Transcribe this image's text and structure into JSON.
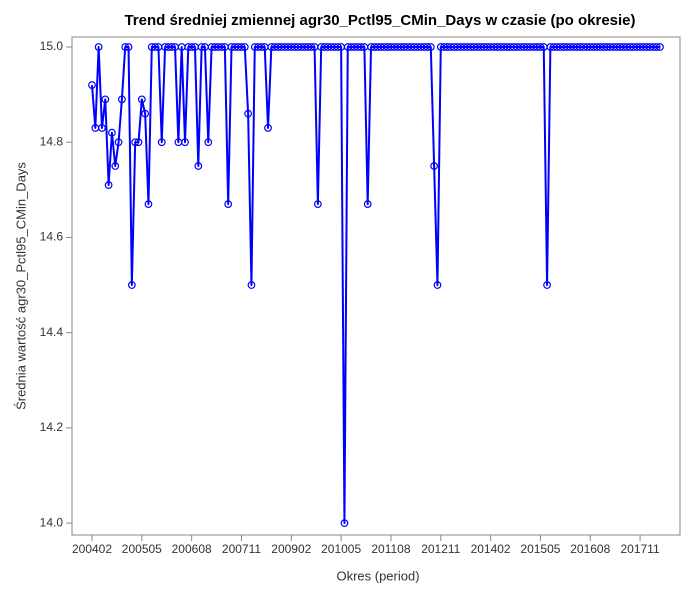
{
  "chart_data": {
    "type": "line",
    "title": "Trend średniej zmiennej agr30_Pctl95_CMin_Days w czasie (po okresie)",
    "x_label": "Okres (period)",
    "y_label": "Średnia wartość agr30_Pctl95_CMin_Days",
    "categories": [
      "200402",
      null,
      null,
      null,
      null,
      null,
      null,
      null,
      null,
      null,
      null,
      null,
      null,
      null,
      null,
      "200505",
      null,
      null,
      null,
      null,
      null,
      null,
      null,
      null,
      null,
      null,
      null,
      null,
      null,
      null,
      "200608",
      null,
      null,
      null,
      null,
      null,
      null,
      null,
      null,
      null,
      null,
      null,
      null,
      null,
      null,
      "200711",
      null,
      null,
      null,
      null,
      null,
      null,
      null,
      null,
      null,
      null,
      null,
      null,
      null,
      null,
      "200902",
      null,
      null,
      null,
      null,
      null,
      null,
      null,
      null,
      null,
      null,
      null,
      null,
      null,
      null,
      "201005",
      null,
      null,
      null,
      null,
      null,
      null,
      null,
      null,
      null,
      null,
      null,
      null,
      null,
      null,
      "201108",
      null,
      null,
      null,
      null,
      null,
      null,
      null,
      null,
      null,
      null,
      null,
      null,
      null,
      null,
      "201211",
      null,
      null,
      null,
      null,
      null,
      null,
      null,
      null,
      null,
      null,
      null,
      null,
      null,
      null,
      "201402",
      null,
      null,
      null,
      null,
      null,
      null,
      null,
      null,
      null,
      null,
      null,
      null,
      null,
      null,
      "201505",
      null,
      null,
      null,
      null,
      null,
      null,
      null,
      null,
      null,
      null,
      null,
      null,
      null,
      null,
      "201608",
      null,
      null,
      null,
      null,
      null,
      null,
      null,
      null,
      null,
      null,
      null,
      null,
      null,
      null,
      "201711",
      null,
      null,
      null,
      null,
      null,
      null
    ],
    "series": [
      {
        "name": "agr30_Pctl95_CMin_Days",
        "color": "#0000ff",
        "values": [
          14.92,
          14.83,
          15,
          14.83,
          14.89,
          14.71,
          14.82,
          14.75,
          14.8,
          14.89,
          15,
          15,
          14.5,
          14.8,
          14.8,
          14.89,
          14.86,
          14.67,
          15,
          15,
          15,
          14.8,
          15,
          15,
          15,
          15,
          14.8,
          15,
          14.8,
          15,
          15,
          15,
          14.75,
          15,
          15,
          14.8,
          15,
          15,
          15,
          15,
          15,
          14.67,
          15,
          15,
          15,
          15,
          15,
          14.86,
          14.5,
          15,
          15,
          15,
          15,
          14.83,
          15,
          15,
          15,
          15,
          15,
          15,
          15,
          15,
          15,
          15,
          15,
          15,
          15,
          15,
          14.67,
          15,
          15,
          15,
          15,
          15,
          15,
          15,
          14,
          15,
          15,
          15,
          15,
          15,
          15,
          14.67,
          15,
          15,
          15,
          15,
          15,
          15,
          15,
          15,
          15,
          15,
          15,
          15,
          15,
          15,
          15,
          15,
          15,
          15,
          15,
          14.75,
          14.5,
          15,
          15,
          15,
          15,
          15,
          15,
          15,
          15,
          15,
          15,
          15,
          15,
          15,
          15,
          15,
          15,
          15,
          15,
          15,
          15,
          15,
          15,
          15,
          15,
          15,
          15,
          15,
          15,
          15,
          15,
          15,
          15,
          14.5,
          15,
          15,
          15,
          15,
          15,
          15,
          15,
          15,
          15,
          15,
          15,
          15,
          15,
          15,
          15,
          15,
          15,
          15,
          15,
          15,
          15,
          15,
          15,
          15,
          15,
          15,
          15,
          15,
          15,
          15,
          15,
          15,
          15,
          15
        ]
      }
    ],
    "ylim": [
      13.975,
      15.021
    ],
    "yticks": [
      {
        "value": 14,
        "label": "14.0"
      },
      14.2,
      14.4,
      14.6,
      14.8,
      {
        "value": 15,
        "label": "15.0"
      }
    ]
  }
}
